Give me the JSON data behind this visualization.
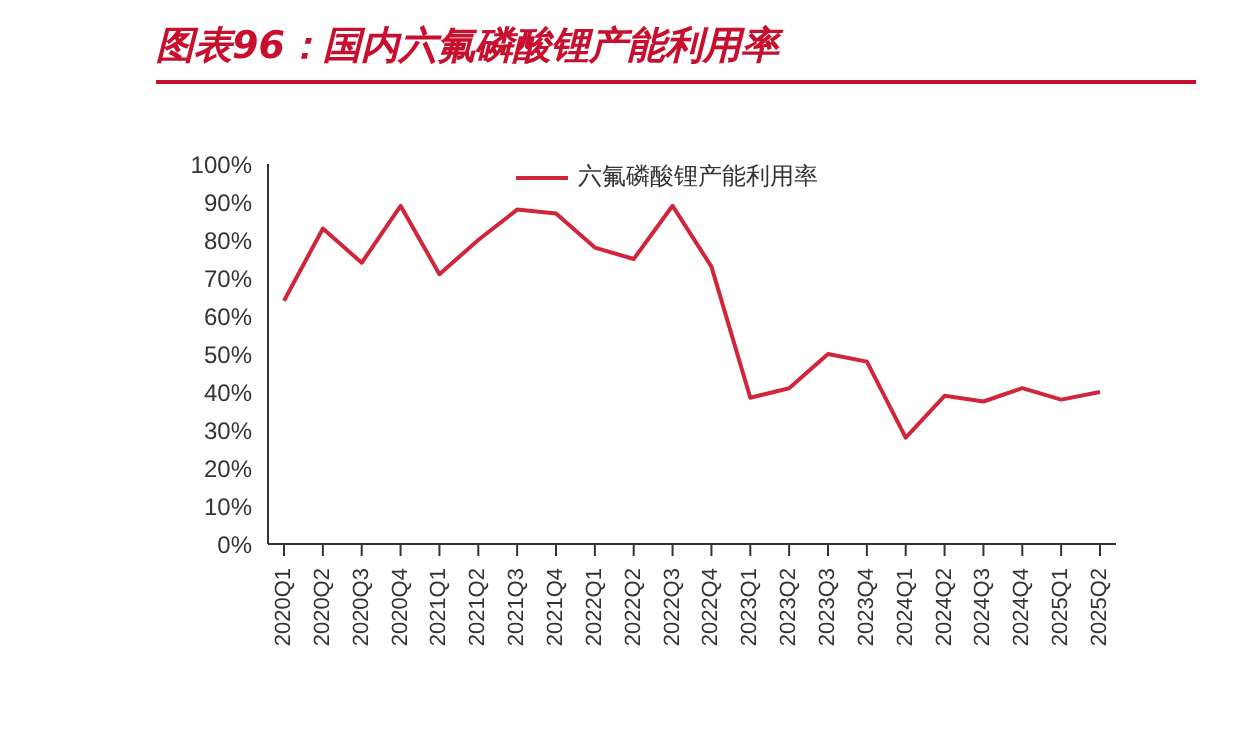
{
  "chart_data": {
    "type": "line",
    "title": "图表96：国内六氟磷酸锂产能利用率",
    "categories": [
      "2020Q1",
      "2020Q2",
      "2020Q3",
      "2020Q4",
      "2021Q1",
      "2021Q2",
      "2021Q3",
      "2021Q4",
      "2022Q1",
      "2022Q2",
      "2022Q3",
      "2022Q4",
      "2023Q1",
      "2023Q2",
      "2023Q3",
      "2023Q4",
      "2024Q1",
      "2024Q2",
      "2024Q3",
      "2024Q4",
      "2025Q1",
      "2025Q2"
    ],
    "series": [
      {
        "name": "六氟磷酸锂产能利用率",
        "color": "#d0253b",
        "values": [
          64,
          83,
          74,
          89,
          71,
          80,
          88,
          87,
          78,
          75,
          89,
          73,
          38.5,
          41,
          50,
          48,
          28,
          39,
          37.5,
          41,
          38,
          40
        ]
      }
    ],
    "ylim": [
      0,
      100
    ],
    "yticks": [
      {
        "value": 0,
        "label": "0%"
      },
      {
        "value": 10,
        "label": "10%"
      },
      {
        "value": 20,
        "label": "20%"
      },
      {
        "value": 30,
        "label": "30%"
      },
      {
        "value": 40,
        "label": "40%"
      },
      {
        "value": 50,
        "label": "50%"
      },
      {
        "value": 60,
        "label": "60%"
      },
      {
        "value": 70,
        "label": "70%"
      },
      {
        "value": 80,
        "label": "80%"
      },
      {
        "value": 90,
        "label": "90%"
      },
      {
        "value": 100,
        "label": "100%"
      }
    ],
    "grid": false,
    "legend": "top right",
    "marker": "none",
    "line_style": "solid"
  }
}
